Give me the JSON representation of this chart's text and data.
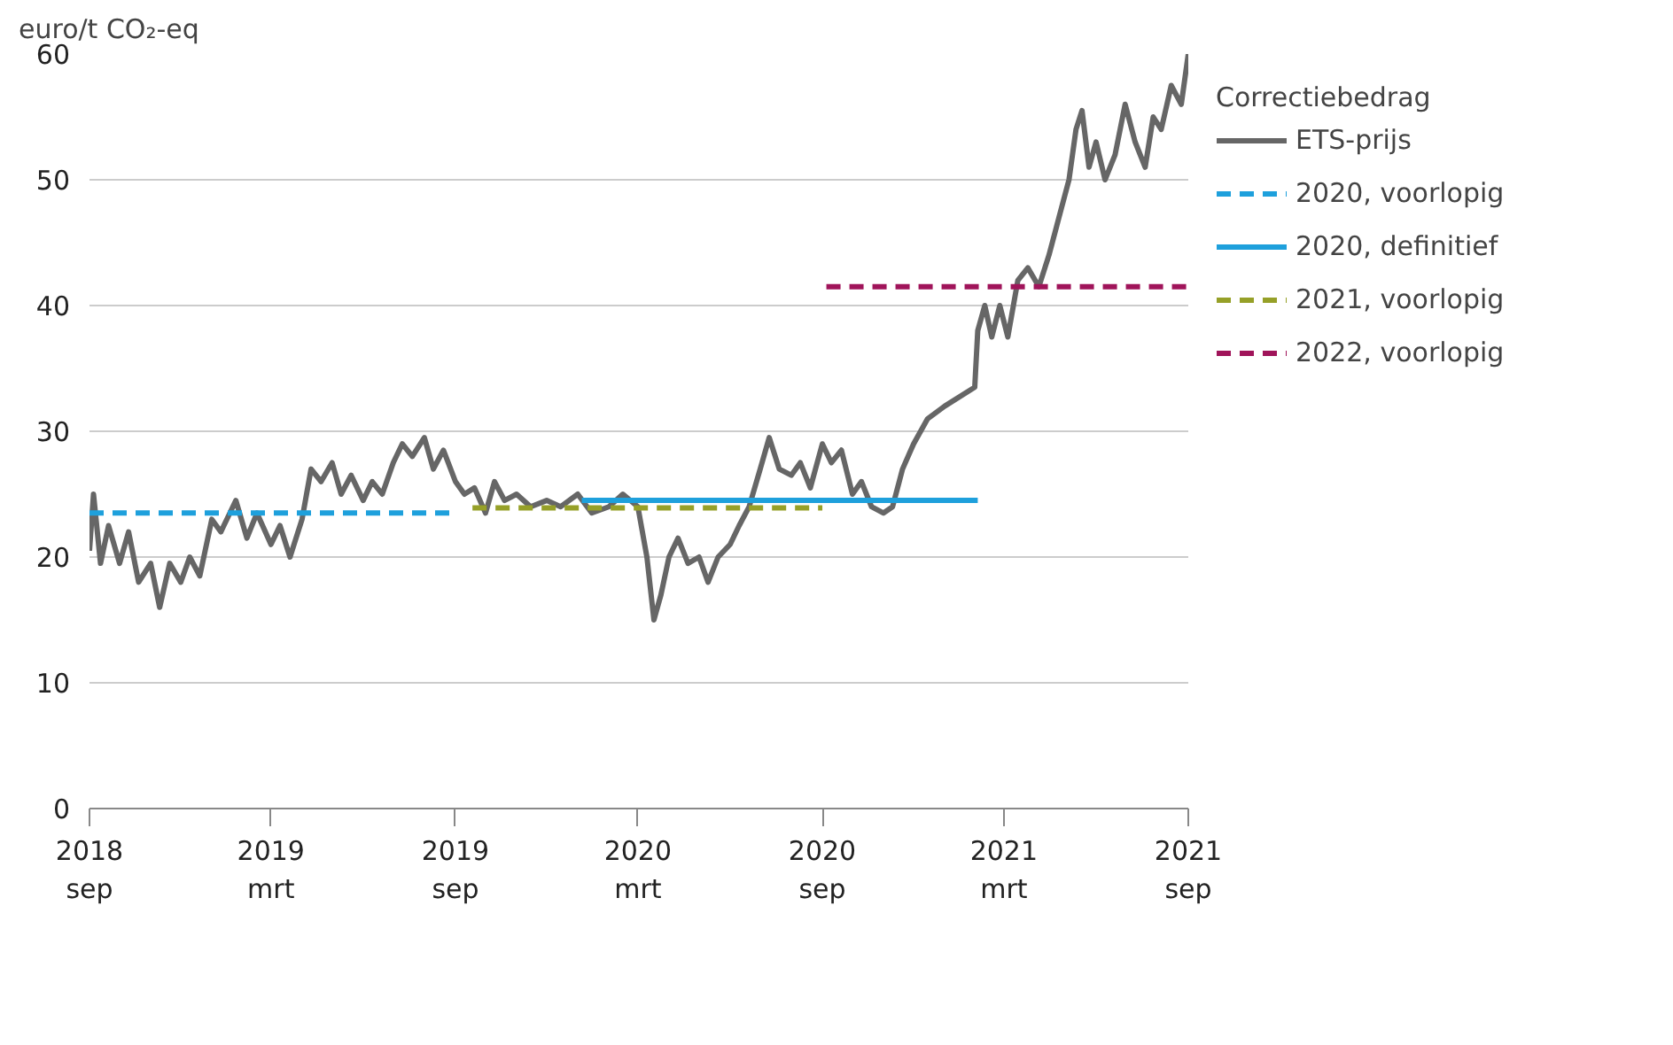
{
  "chart_data": {
    "type": "line",
    "ylabel": "euro/t CO₂-eq",
    "legend_title": "Correctiebedrag",
    "legend": "right",
    "grid": "y",
    "xlim": [
      "2018-09-01",
      "2021-09-01"
    ],
    "ylim": [
      0,
      60
    ],
    "yticks": [
      0,
      10,
      20,
      30,
      40,
      50,
      60
    ],
    "xticks": [
      {
        "value": "2018-09-01",
        "label": "2018\nsep"
      },
      {
        "value": "2019-03-01",
        "label": "2019\nmrt"
      },
      {
        "value": "2019-09-01",
        "label": "2019\nsep"
      },
      {
        "value": "2020-03-01",
        "label": "2020\nmrt"
      },
      {
        "value": "2020-09-01",
        "label": "2020\nsep"
      },
      {
        "value": "2021-03-01",
        "label": "2021\nmrt"
      },
      {
        "value": "2021-09-01",
        "label": "2021\nsep"
      }
    ],
    "series": [
      {
        "name": "ETS-prijs",
        "color": "#666666",
        "line_style": "solid",
        "x": [
          "2018-09-01",
          "2018-09-05",
          "2018-09-12",
          "2018-09-20",
          "2018-10-01",
          "2018-10-10",
          "2018-10-20",
          "2018-11-01",
          "2018-11-10",
          "2018-11-20",
          "2018-12-01",
          "2018-12-10",
          "2018-12-20",
          "2019-01-01",
          "2019-01-10",
          "2019-01-25",
          "2019-02-05",
          "2019-02-15",
          "2019-03-01",
          "2019-03-10",
          "2019-03-20",
          "2019-04-01",
          "2019-04-10",
          "2019-04-20",
          "2019-05-01",
          "2019-05-10",
          "2019-05-20",
          "2019-06-01",
          "2019-06-10",
          "2019-06-20",
          "2019-07-01",
          "2019-07-10",
          "2019-07-20",
          "2019-08-01",
          "2019-08-10",
          "2019-08-20",
          "2019-09-01",
          "2019-09-10",
          "2019-09-20",
          "2019-10-01",
          "2019-10-10",
          "2019-10-20",
          "2019-11-01",
          "2019-11-15",
          "2019-12-01",
          "2019-12-15",
          "2020-01-01",
          "2020-01-15",
          "2020-02-01",
          "2020-02-15",
          "2020-03-01",
          "2020-03-10",
          "2020-03-17",
          "2020-03-24",
          "2020-04-01",
          "2020-04-10",
          "2020-04-20",
          "2020-05-01",
          "2020-05-10",
          "2020-05-20",
          "2020-06-01",
          "2020-06-10",
          "2020-06-20",
          "2020-07-01",
          "2020-07-10",
          "2020-07-20",
          "2020-08-01",
          "2020-08-10",
          "2020-08-20",
          "2020-09-01",
          "2020-09-10",
          "2020-09-20",
          "2020-10-01",
          "2020-10-10",
          "2020-10-20",
          "2020-11-01",
          "2020-11-10",
          "2020-11-20",
          "2020-12-01",
          "2020-12-15",
          "2021-01-01",
          "2021-01-31",
          "2021-02-03",
          "2021-02-10",
          "2021-02-17",
          "2021-02-25",
          "2021-03-05",
          "2021-03-15",
          "2021-03-25",
          "2021-04-05",
          "2021-04-15",
          "2021-04-25",
          "2021-05-05",
          "2021-05-12",
          "2021-05-18",
          "2021-05-25",
          "2021-06-01",
          "2021-06-10",
          "2021-06-20",
          "2021-06-30",
          "2021-07-10",
          "2021-07-20",
          "2021-07-28",
          "2021-08-05",
          "2021-08-15",
          "2021-08-25",
          "2021-09-01"
        ],
        "values": [
          20.5,
          25,
          19.5,
          22.5,
          19.5,
          22,
          18,
          19.5,
          16,
          19.5,
          18,
          20,
          18.5,
          23,
          22,
          24.5,
          21.5,
          23.5,
          21,
          22.5,
          20,
          23,
          27,
          26,
          27.5,
          25,
          26.5,
          24.5,
          26,
          25,
          27.5,
          29,
          28,
          29.5,
          27,
          28.5,
          26,
          25,
          25.5,
          23.5,
          26,
          24.5,
          25,
          24,
          24.5,
          24,
          25,
          23.5,
          24,
          25,
          24,
          20,
          15,
          17,
          20,
          21.5,
          19.5,
          20,
          18,
          20,
          21,
          22.5,
          24,
          27,
          29.5,
          27,
          26.5,
          27.5,
          25.5,
          29,
          27.5,
          28.5,
          25,
          26,
          24,
          23.5,
          24,
          27,
          29,
          31,
          32,
          33.5,
          38,
          40,
          37.5,
          40,
          37.5,
          42,
          43,
          41.5,
          44,
          47,
          50,
          54,
          55.5,
          51,
          53,
          50,
          52,
          56,
          53,
          51,
          55,
          54,
          57.5,
          56,
          60
        ]
      },
      {
        "name": "2020, voorlopig",
        "color": "#1ea0dc",
        "line_style": "dashed",
        "x": [
          "2018-09-01",
          "2019-09-01"
        ],
        "values": [
          23.5,
          23.5
        ]
      },
      {
        "name": "2020, definitief",
        "color": "#1ea0dc",
        "line_style": "solid",
        "x": [
          "2020-01-05",
          "2021-02-03"
        ],
        "values": [
          24.5,
          24.5
        ]
      },
      {
        "name": "2021, voorlopig",
        "color": "#96a028",
        "line_style": "dashed",
        "x": [
          "2019-09-18",
          "2020-09-01"
        ],
        "values": [
          23.9,
          23.9
        ]
      },
      {
        "name": "2022, voorlopig",
        "color": "#a0145a",
        "line_style": "dashed",
        "x": [
          "2020-09-05",
          "2021-09-01"
        ],
        "values": [
          41.5,
          41.5
        ]
      }
    ]
  }
}
